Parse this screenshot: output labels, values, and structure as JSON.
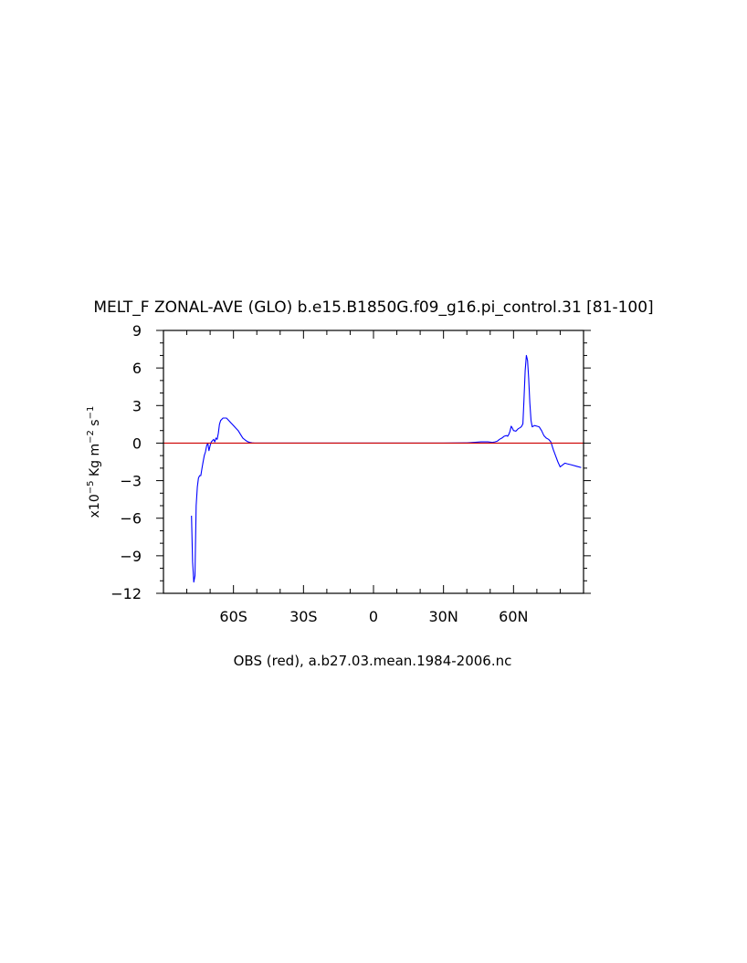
{
  "chart_data": {
    "type": "line",
    "title": "MELT_F ZONAL-AVE (GLO) b.e15.B1850G.f09_g16.pi_control.31 [81-100]",
    "ylabel": "x10^-5 Kg m^-2 s^-1",
    "xlabel": "OBS (red), a.b27.03.mean.1984-2006.nc",
    "xlim": [
      -90,
      90
    ],
    "ylim": [
      -12,
      9
    ],
    "xticks": [
      {
        "value": -60,
        "label": "60S"
      },
      {
        "value": -30,
        "label": "30S"
      },
      {
        "value": 0,
        "label": "0"
      },
      {
        "value": 30,
        "label": "30N"
      },
      {
        "value": 60,
        "label": "60N"
      }
    ],
    "yticks": [
      {
        "value": 9,
        "label": "9"
      },
      {
        "value": 6,
        "label": "6"
      },
      {
        "value": 3,
        "label": "3"
      },
      {
        "value": 0,
        "label": "0"
      },
      {
        "value": -3,
        "label": "-3"
      },
      {
        "value": -6,
        "label": "-6"
      },
      {
        "value": -9,
        "label": "-9"
      },
      {
        "value": -12,
        "label": "-12"
      }
    ],
    "series": [
      {
        "color": "#0000ff",
        "x": [
          -78,
          -77.5,
          -77,
          -76.5,
          -76,
          -75.5,
          -75,
          -74.5,
          -74,
          -73.5,
          -73,
          -72.5,
          -72,
          -71.5,
          -71,
          -70.5,
          -70,
          -69.5,
          -69,
          -68.5,
          -68,
          -67.5,
          -67,
          -66.5,
          -66,
          -65.5,
          -65,
          -64.5,
          -64,
          -63.5,
          -63,
          -62,
          -61,
          -60,
          -59,
          -58,
          -57,
          -56,
          -55,
          -54,
          -53,
          -52,
          -51,
          -50,
          -45,
          -40,
          -30,
          -20,
          -10,
          0,
          10,
          20,
          30,
          40,
          43,
          46,
          49,
          51,
          52,
          53,
          54,
          55,
          56,
          57,
          57.5,
          58,
          58.5,
          59,
          59.5,
          60,
          61,
          62,
          63,
          63.5,
          64,
          64.5,
          65,
          65.5,
          66,
          66.5,
          67,
          67.5,
          68,
          69,
          70,
          71,
          72,
          73,
          74,
          75,
          76,
          77,
          78,
          79,
          80,
          81,
          82,
          83,
          85,
          87,
          89
        ],
        "y": [
          -5.8,
          -9.5,
          -11.1,
          -10.6,
          -5.0,
          -3.5,
          -2.8,
          -2.6,
          -2.6,
          -2.0,
          -1.5,
          -1.0,
          -0.7,
          -0.2,
          0.0,
          -0.6,
          -0.2,
          0.1,
          0.2,
          0.3,
          0.1,
          0.4,
          0.3,
          0.8,
          1.5,
          1.8,
          1.9,
          2.0,
          2.0,
          2.0,
          2.0,
          1.8,
          1.6,
          1.4,
          1.2,
          1.0,
          0.7,
          0.4,
          0.25,
          0.12,
          0.05,
          0.02,
          0.0,
          0.0,
          0.0,
          0.0,
          0.0,
          0.0,
          0.0,
          0.0,
          0.0,
          0.0,
          0.0,
          0.02,
          0.05,
          0.1,
          0.1,
          0.05,
          0.1,
          0.15,
          0.3,
          0.4,
          0.55,
          0.6,
          0.55,
          0.7,
          0.95,
          1.35,
          1.2,
          1.0,
          0.95,
          1.15,
          1.25,
          1.35,
          1.55,
          3.5,
          5.8,
          7.0,
          6.6,
          5.2,
          3.2,
          1.8,
          1.3,
          1.4,
          1.35,
          1.3,
          1.0,
          0.6,
          0.4,
          0.3,
          0.1,
          -0.5,
          -1.0,
          -1.5,
          -1.9,
          -1.75,
          -1.6,
          -1.65,
          -1.75,
          -1.85,
          -1.95
        ]
      },
      {
        "color": "#cc0000",
        "x": [
          -90,
          90
        ],
        "y": [
          0,
          0
        ]
      }
    ],
    "grid": false,
    "legend": "none"
  }
}
